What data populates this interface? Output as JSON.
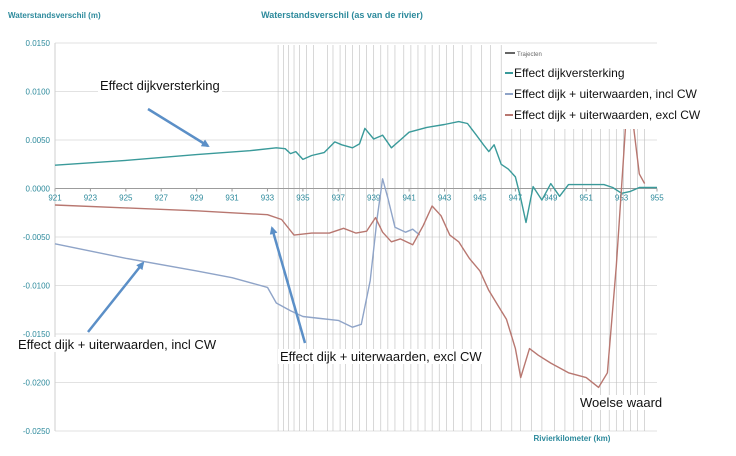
{
  "chart_data": {
    "type": "line",
    "title": "Waterstandsverschil (as van de rivier)",
    "ylabel": "Waterstandsverschil  (m)",
    "xlabel": "Rivierkilometer  (km)",
    "xlim": [
      921,
      955
    ],
    "ylim": [
      -0.025,
      0.015
    ],
    "grid": true,
    "legend_position": "top-right",
    "x_ticks": [
      921,
      923,
      925,
      927,
      929,
      931,
      933,
      935,
      937,
      939,
      941,
      943,
      945,
      947,
      949,
      951,
      953,
      955
    ],
    "y_ticks": [
      "0.0150",
      "0.0100",
      "0.0050",
      "0.0000",
      "-0.0050",
      "-0.0100",
      "-0.0150",
      "-0.0200",
      "-0.0250"
    ],
    "legend_header": "Trajecten",
    "series": [
      {
        "name": "Effect dijkversterking",
        "color": "#3a9a9a",
        "points": [
          [
            921,
            0.0024
          ],
          [
            925,
            0.0029
          ],
          [
            929,
            0.0035
          ],
          [
            932,
            0.0039
          ],
          [
            933.5,
            0.0042
          ],
          [
            934,
            0.0041
          ],
          [
            934.3,
            0.0036
          ],
          [
            934.6,
            0.0038
          ],
          [
            935,
            0.003
          ],
          [
            935.5,
            0.0034
          ],
          [
            936.2,
            0.0037
          ],
          [
            936.8,
            0.0048
          ],
          [
            937.2,
            0.0045
          ],
          [
            937.8,
            0.0042
          ],
          [
            938.2,
            0.0046
          ],
          [
            938.5,
            0.0062
          ],
          [
            939,
            0.0051
          ],
          [
            939.5,
            0.0055
          ],
          [
            940,
            0.0042
          ],
          [
            940.5,
            0.005
          ],
          [
            941,
            0.0058
          ],
          [
            942,
            0.0063
          ],
          [
            943,
            0.0066
          ],
          [
            943.8,
            0.0069
          ],
          [
            944.3,
            0.0067
          ],
          [
            944.8,
            0.0055
          ],
          [
            945.2,
            0.0045
          ],
          [
            945.5,
            0.0038
          ],
          [
            945.8,
            0.0045
          ],
          [
            946.2,
            0.0025
          ],
          [
            946.6,
            0.002
          ],
          [
            947,
            0.0012
          ],
          [
            947.3,
            -0.001
          ],
          [
            947.6,
            -0.0035
          ],
          [
            948,
            0.0002
          ],
          [
            948.5,
            -0.0012
          ],
          [
            949,
            0.0005
          ],
          [
            949.5,
            -0.0008
          ],
          [
            950,
            0.0004
          ],
          [
            951,
            0.0004
          ],
          [
            952,
            0.0004
          ],
          [
            952.5,
            0.0001
          ],
          [
            953,
            -0.0005
          ],
          [
            953.5,
            -0.0003
          ],
          [
            954,
            0.0001
          ],
          [
            955,
            0.0001
          ]
        ]
      },
      {
        "name": "Effect dijk + uiterwaarden, incl CW",
        "color": "#8fa4c8",
        "points": [
          [
            921,
            -0.0057
          ],
          [
            925,
            -0.0072
          ],
          [
            929,
            -0.0085
          ],
          [
            931,
            -0.0092
          ],
          [
            933,
            -0.0102
          ],
          [
            933.5,
            -0.0118
          ],
          [
            934.3,
            -0.0126
          ],
          [
            935,
            -0.0132
          ],
          [
            936,
            -0.0134
          ],
          [
            937,
            -0.0136
          ],
          [
            937.8,
            -0.0143
          ],
          [
            938.3,
            -0.014
          ],
          [
            938.8,
            -0.0095
          ],
          [
            939.2,
            -0.003
          ],
          [
            939.5,
            0.001
          ],
          [
            939.8,
            -0.001
          ],
          [
            940.2,
            -0.004
          ],
          [
            940.8,
            -0.0045
          ],
          [
            941.2,
            -0.0042
          ],
          [
            941.6,
            -0.0048
          ]
        ]
      },
      {
        "name": "Effect dijk + uiterwaarden, excl CW",
        "color": "#b87770",
        "points": [
          [
            921,
            -0.0017
          ],
          [
            925,
            -0.002
          ],
          [
            929,
            -0.0023
          ],
          [
            931,
            -0.0025
          ],
          [
            933,
            -0.0027
          ],
          [
            933.8,
            -0.0032
          ],
          [
            934.5,
            -0.0048
          ],
          [
            935.5,
            -0.0046
          ],
          [
            936.5,
            -0.0046
          ],
          [
            937.3,
            -0.0041
          ],
          [
            938,
            -0.0046
          ],
          [
            938.6,
            -0.0044
          ],
          [
            939.1,
            -0.003
          ],
          [
            939.5,
            -0.0045
          ],
          [
            940,
            -0.0055
          ],
          [
            940.5,
            -0.0052
          ],
          [
            941.2,
            -0.0058
          ],
          [
            941.8,
            -0.0038
          ],
          [
            942.3,
            -0.0018
          ],
          [
            942.8,
            -0.0028
          ],
          [
            943.3,
            -0.0048
          ],
          [
            943.8,
            -0.0055
          ],
          [
            944.4,
            -0.0072
          ],
          [
            945,
            -0.0085
          ],
          [
            945.5,
            -0.0105
          ],
          [
            946,
            -0.012
          ],
          [
            946.5,
            -0.0135
          ],
          [
            947,
            -0.0165
          ],
          [
            947.3,
            -0.0195
          ],
          [
            947.8,
            -0.0165
          ],
          [
            948.3,
            -0.0172
          ],
          [
            949,
            -0.018
          ],
          [
            950,
            -0.019
          ],
          [
            951,
            -0.0195
          ],
          [
            951.7,
            -0.0205
          ],
          [
            952.2,
            -0.019
          ],
          [
            952.7,
            -0.008
          ],
          [
            953.1,
            0.003
          ],
          [
            953.4,
            0.0115
          ],
          [
            953.7,
            0.006
          ],
          [
            954,
            0.0015
          ],
          [
            954.3,
            0.0005
          ]
        ]
      }
    ],
    "annotations": [
      {
        "text": "Effect dijkversterking"
      },
      {
        "text": "Effect dijk + uiterwaarden, incl CW"
      },
      {
        "text": "Effect dijk + uiterwaarden, excl CW"
      },
      {
        "text": "Woelse waard"
      }
    ],
    "trajecten_km": [
      933.6,
      933.9,
      934.2,
      934.5,
      934.8,
      935.2,
      935.6,
      936.4,
      936.7,
      937.1,
      937.4,
      937.8,
      938.2,
      938.6,
      939.0,
      939.4,
      939.8,
      940.2,
      940.7,
      941.1,
      941.5,
      941.9,
      942.3,
      942.7,
      943.1,
      943.5,
      944.0,
      944.5,
      945.1,
      945.6,
      946.2,
      946.8,
      947.3,
      947.9,
      948.5,
      949.2,
      949.8,
      950.3,
      950.8,
      951.3,
      951.8,
      952.3,
      952.7,
      953.1,
      953.5,
      953.9,
      954.3
    ]
  }
}
